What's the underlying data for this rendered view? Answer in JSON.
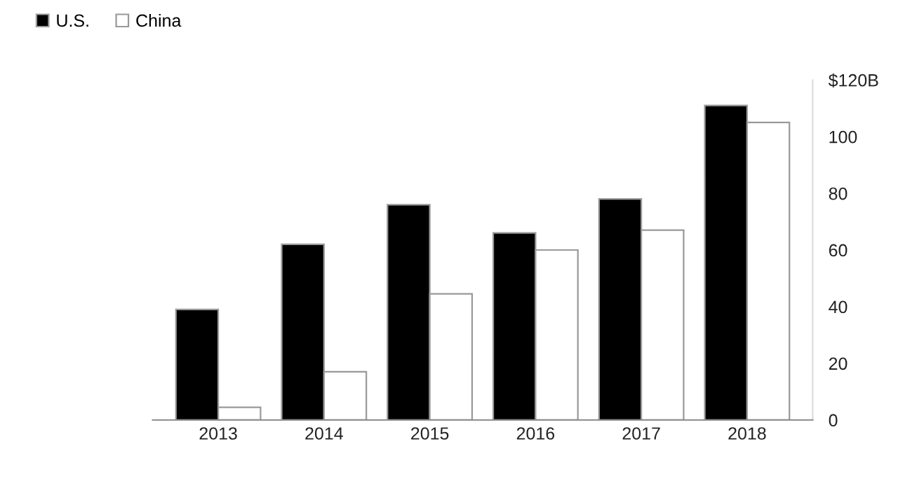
{
  "chart_data": {
    "type": "bar",
    "categories": [
      "2013",
      "2014",
      "2015",
      "2016",
      "2017",
      "2018"
    ],
    "series": [
      {
        "name": "U.S.",
        "color": "#000000",
        "values": [
          39,
          62,
          76,
          66,
          78,
          111
        ]
      },
      {
        "name": "China",
        "color": "#ffffff",
        "values": [
          4.5,
          17,
          44.5,
          60,
          67,
          105
        ]
      }
    ],
    "ylim": [
      0,
      120
    ],
    "yticks": [
      0,
      20,
      40,
      60,
      80,
      100,
      {
        "value": 120,
        "label": "$120B"
      }
    ],
    "grid": false,
    "legend": "top left"
  }
}
